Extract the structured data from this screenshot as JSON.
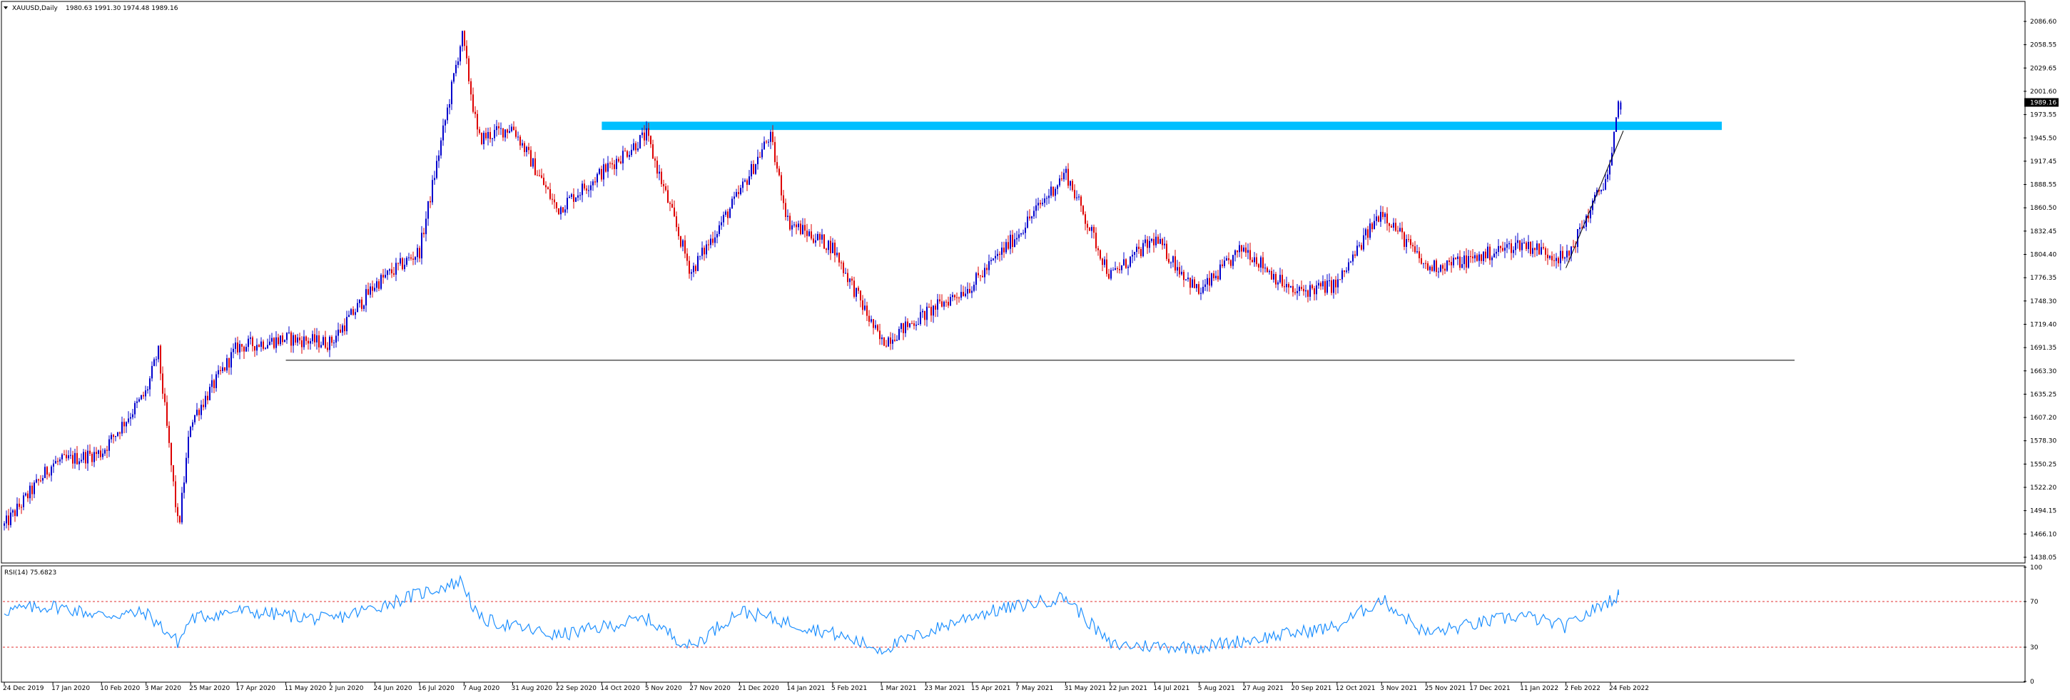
{
  "header": {
    "symbol_label": "XAUUSD,Daily",
    "ohlc_label": "1980.63 1991.30 1974.48 1989.16"
  },
  "price_axis": {
    "ticks": [
      "2086.60",
      "2058.55",
      "2029.65",
      "2001.60",
      "1973.55",
      "1945.50",
      "1917.45",
      "1888.55",
      "1860.50",
      "1832.45",
      "1804.40",
      "1776.35",
      "1748.30",
      "1719.40",
      "1691.35",
      "1663.30",
      "1635.25",
      "1607.20",
      "1578.30",
      "1550.25",
      "1522.20",
      "1494.15",
      "1466.10",
      "1438.05"
    ],
    "current_price": "1989.16"
  },
  "date_axis": {
    "ticks": [
      "24 Dec 2019",
      "17 Jan 2020",
      "10 Feb 2020",
      "3 Mar 2020",
      "25 Mar 2020",
      "17 Apr 2020",
      "11 May 2020",
      "2 Jun 2020",
      "24 Jun 2020",
      "16 Jul 2020",
      "7 Aug 2020",
      "31 Aug 2020",
      "22 Sep 2020",
      "14 Oct 2020",
      "5 Nov 2020",
      "27 Nov 2020",
      "21 Dec 2020",
      "14 Jan 2021",
      "5 Feb 2021",
      "1 Mar 2021",
      "23 Mar 2021",
      "15 Apr 2021",
      "7 May 2021",
      "31 May 2021",
      "22 Jun 2021",
      "14 Jul 2021",
      "5 Aug 2021",
      "27 Aug 2021",
      "20 Sep 2021",
      "12 Oct 2021",
      "3 Nov 2021",
      "25 Nov 2021",
      "17 Dec 2021",
      "11 Jan 2022",
      "2 Feb 2022",
      "24 Feb 2022"
    ]
  },
  "rsi": {
    "label": "RSI(14) 75.6823",
    "axis_ticks": [
      "100",
      "70",
      "30",
      "0"
    ],
    "levels": [
      70,
      30
    ]
  },
  "colors": {
    "bull_candle": "#0000cc",
    "bear_candle": "#dd0000",
    "resistance_zone": "#00bfff",
    "support_line": "#000000",
    "trendline": "#000000",
    "rsi_line": "#1e90ff",
    "rsi_levels": "#e03030"
  },
  "chart_data": {
    "type": "candlestick",
    "symbol": "XAUUSD",
    "timeframe": "Daily",
    "last_bar": {
      "open": 1980.63,
      "high": 1991.3,
      "low": 1974.48,
      "close": 1989.16
    },
    "price_range": [
      1438.05,
      2100
    ],
    "anchors": [
      {
        "date": "24 Dec 2019",
        "price": 1480
      },
      {
        "date": "17 Jan 2020",
        "price": 1555
      },
      {
        "date": "10 Feb 2020",
        "price": 1568
      },
      {
        "date": "3 Mar 2020",
        "price": 1640
      },
      {
        "date": "9 Mar 2020",
        "price": 1690
      },
      {
        "date": "19 Mar 2020",
        "price": 1475
      },
      {
        "date": "25 Mar 2020",
        "price": 1605
      },
      {
        "date": "17 Apr 2020",
        "price": 1695
      },
      {
        "date": "11 May 2020",
        "price": 1705
      },
      {
        "date": "2 Jun 2020",
        "price": 1700
      },
      {
        "date": "24 Jun 2020",
        "price": 1770
      },
      {
        "date": "16 Jul 2020",
        "price": 1810
      },
      {
        "date": "6 Aug 2020",
        "price": 2070
      },
      {
        "date": "14 Aug 2020",
        "price": 1945
      },
      {
        "date": "31 Aug 2020",
        "price": 1960
      },
      {
        "date": "22 Sep 2020",
        "price": 1860
      },
      {
        "date": "14 Oct 2020",
        "price": 1905
      },
      {
        "date": "5 Nov 2020",
        "price": 1950
      },
      {
        "date": "27 Nov 2020",
        "price": 1785
      },
      {
        "date": "21 Dec 2020",
        "price": 1880
      },
      {
        "date": "5 Jan 2021",
        "price": 1950
      },
      {
        "date": "14 Jan 2021",
        "price": 1845
      },
      {
        "date": "5 Feb 2021",
        "price": 1815
      },
      {
        "date": "1 Mar 2021",
        "price": 1700
      },
      {
        "date": "23 Mar 2021",
        "price": 1735
      },
      {
        "date": "15 Apr 2021",
        "price": 1770
      },
      {
        "date": "7 May 2021",
        "price": 1830
      },
      {
        "date": "31 May 2021",
        "price": 1905
      },
      {
        "date": "22 Jun 2021",
        "price": 1780
      },
      {
        "date": "14 Jul 2021",
        "price": 1825
      },
      {
        "date": "5 Aug 2021",
        "price": 1760
      },
      {
        "date": "27 Aug 2021",
        "price": 1815
      },
      {
        "date": "20 Sep 2021",
        "price": 1760
      },
      {
        "date": "12 Oct 2021",
        "price": 1770
      },
      {
        "date": "3 Nov 2021",
        "price": 1860
      },
      {
        "date": "25 Nov 2021",
        "price": 1790
      },
      {
        "date": "17 Dec 2021",
        "price": 1800
      },
      {
        "date": "11 Jan 2022",
        "price": 1820
      },
      {
        "date": "2 Feb 2022",
        "price": 1800
      },
      {
        "date": "24 Feb 2022",
        "price": 1910
      },
      {
        "date": "28 Feb 2022",
        "price": 1989.16
      }
    ],
    "resistance_zone": {
      "from_price": 1956,
      "to_price": 1966,
      "from_date": "14 Oct 2020",
      "to_date": "after 24 Feb 2022"
    },
    "support_line": {
      "price": 1679,
      "from_date": "11 May 2020",
      "to_date": "after 24 Feb 2022"
    },
    "trendline": [
      {
        "date": "2 Feb 2022",
        "price": 1790
      },
      {
        "date": "after 24 Feb 2022",
        "price": 1955
      }
    ],
    "rsi_series": {
      "label": "RSI(14)",
      "last": 75.6823,
      "anchors": [
        {
          "date": "24 Dec 2019",
          "value": 62
        },
        {
          "date": "17 Jan 2020",
          "value": 66
        },
        {
          "date": "10 Feb 2020",
          "value": 58
        },
        {
          "date": "3 Mar 2020",
          "value": 60
        },
        {
          "date": "19 Mar 2020",
          "value": 34
        },
        {
          "date": "25 Mar 2020",
          "value": 55
        },
        {
          "date": "17 Apr 2020",
          "value": 62
        },
        {
          "date": "11 May 2020",
          "value": 58
        },
        {
          "date": "2 Jun 2020",
          "value": 54
        },
        {
          "date": "24 Jun 2020",
          "value": 65
        },
        {
          "date": "6 Aug 2020",
          "value": 88
        },
        {
          "date": "14 Aug 2020",
          "value": 55
        },
        {
          "date": "22 Sep 2020",
          "value": 40
        },
        {
          "date": "5 Nov 2020",
          "value": 55
        },
        {
          "date": "27 Nov 2020",
          "value": 30
        },
        {
          "date": "21 Dec 2020",
          "value": 62
        },
        {
          "date": "5 Feb 2021",
          "value": 42
        },
        {
          "date": "1 Mar 2021",
          "value": 28
        },
        {
          "date": "15 Apr 2021",
          "value": 58
        },
        {
          "date": "31 May 2021",
          "value": 74
        },
        {
          "date": "22 Jun 2021",
          "value": 32
        },
        {
          "date": "5 Aug 2021",
          "value": 30
        },
        {
          "date": "12 Oct 2021",
          "value": 48
        },
        {
          "date": "3 Nov 2021",
          "value": 72
        },
        {
          "date": "25 Nov 2021",
          "value": 42
        },
        {
          "date": "11 Jan 2022",
          "value": 58
        },
        {
          "date": "2 Feb 2022",
          "value": 48
        },
        {
          "date": "28 Feb 2022",
          "value": 75.68
        }
      ]
    }
  }
}
